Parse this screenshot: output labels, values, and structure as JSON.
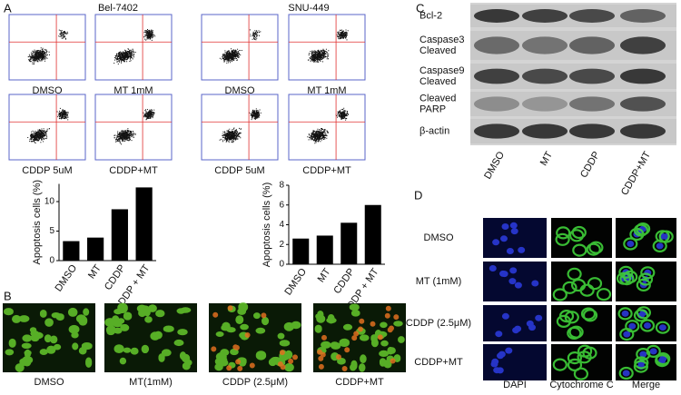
{
  "chart_data": [
    {
      "type": "bar",
      "y_label": "Apoptosis cells (%)",
      "categories": [
        "DMSO",
        "MT",
        "CDDP",
        "CDDP + MT"
      ],
      "values": [
        3.3,
        3.9,
        8.7,
        12.4
      ],
      "color": "#000000",
      "ylim": [
        0,
        13
      ],
      "yticks": [
        0,
        5,
        10
      ]
    },
    {
      "type": "bar",
      "y_label": "Apoptosis cells (%)",
      "categories": [
        "DMSO",
        "MT",
        "CDDP",
        "CDDP + MT"
      ],
      "values": [
        2.6,
        2.9,
        4.2,
        6.0
      ],
      "color": "#000000",
      "ylim": [
        0,
        8
      ],
      "yticks": [
        0,
        2,
        4,
        6,
        8
      ]
    }
  ],
  "panel_a": {
    "label": "A",
    "cell_lines": [
      "Bel-7402",
      "SNU-449"
    ],
    "plot_labels": [
      "DMSO",
      "MT 1mM",
      "DMSO",
      "MT 1mM",
      "CDDP 5uM",
      "CDDP+MT",
      "CDDP 5uM",
      "CDDP+MT"
    ]
  },
  "panel_b": {
    "label": "B",
    "image_labels": [
      "DMSO",
      "MT(1mM)",
      "CDDP (2.5μM)",
      "CDDP+MT"
    ]
  },
  "panel_c": {
    "label": "C",
    "proteins": [
      "Bcl-2",
      "Caspase3 Cleaved",
      "Caspase9 Cleaved",
      "Cleaved PARP",
      "β-actin"
    ],
    "lanes": [
      "DMSO",
      "MT",
      "CDDP",
      "CDDP+MT"
    ]
  },
  "panel_d": {
    "label": "D",
    "rows": [
      "DMSO",
      "MT (1mM)",
      "CDDP (2.5μM)",
      "CDDP+MT"
    ],
    "columns": [
      "DAPI",
      "Cytochrome C",
      "Merge"
    ]
  }
}
